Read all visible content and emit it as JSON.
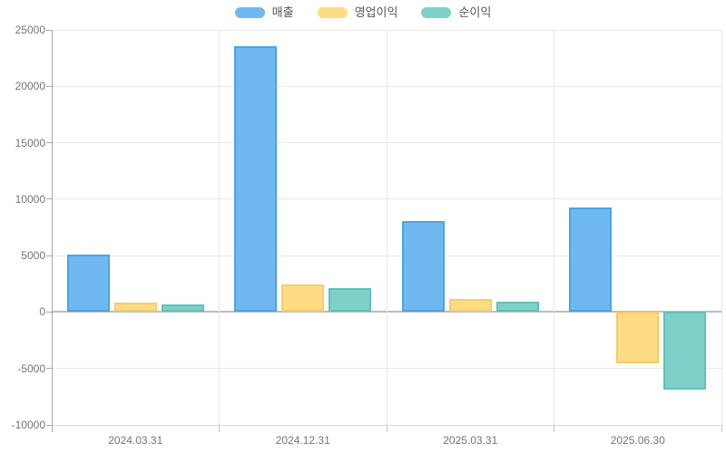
{
  "chart_data": {
    "type": "bar",
    "title": "",
    "xlabel": "",
    "ylabel": "",
    "categories": [
      "2024.03.31",
      "2024.12.31",
      "2025.03.31",
      "2025.06.30"
    ],
    "series": [
      {
        "name": "매출",
        "color": "#6FB9F0",
        "border_color": "#4AA4E4",
        "values": [
          5100,
          23550,
          8100,
          9250
        ]
      },
      {
        "name": "영업이익",
        "color": "#FDDC84",
        "border_color": "#F7CB67",
        "values": [
          830,
          2430,
          1150,
          -4550
        ]
      },
      {
        "name": "순이익",
        "color": "#7FD0C8",
        "border_color": "#5CC3B8",
        "values": [
          660,
          2110,
          880,
          -6880
        ]
      }
    ],
    "ylim": [
      -10000,
      25000
    ],
    "y_step": 5000,
    "y_ticks": [
      "25000",
      "20000",
      "15000",
      "10000",
      "5000",
      "0",
      "-5000",
      "-10000"
    ],
    "grid": true,
    "legend_position": "top"
  }
}
